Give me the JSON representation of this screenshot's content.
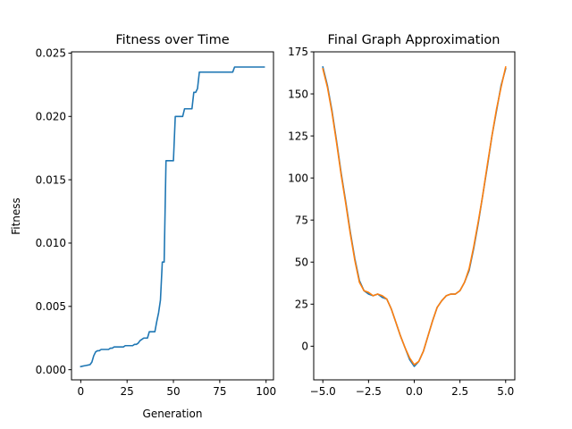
{
  "chart_data": [
    {
      "type": "line",
      "title": "Fitness over Time",
      "xlabel": "Generation",
      "ylabel": "Fitness",
      "xlim": [
        -5,
        104
      ],
      "ylim": [
        -0.0008,
        0.0251
      ],
      "xticks": [
        0,
        25,
        50,
        75,
        100
      ],
      "xtick_labels": [
        "0",
        "25",
        "50",
        "75",
        "100"
      ],
      "yticks": [
        0.0,
        0.005,
        0.01,
        0.015,
        0.02,
        0.025
      ],
      "ytick_labels": [
        "0.000",
        "0.005",
        "0.010",
        "0.015",
        "0.020",
        "0.025"
      ],
      "grid": false,
      "series": [
        {
          "color": "#1f77b4",
          "x": [
            0,
            1,
            2,
            3,
            4,
            5,
            6,
            7,
            8,
            9,
            10,
            11,
            12,
            13,
            14,
            15,
            16,
            17,
            18,
            19,
            20,
            21,
            22,
            23,
            24,
            25,
            26,
            27,
            28,
            29,
            30,
            31,
            32,
            33,
            34,
            35,
            36,
            37,
            38,
            39,
            40,
            41,
            42,
            43,
            44,
            45,
            46,
            47,
            48,
            49,
            50,
            51,
            52,
            53,
            54,
            55,
            56,
            57,
            58,
            59,
            60,
            61,
            62,
            63,
            64,
            65,
            66,
            67,
            68,
            69,
            70,
            71,
            72,
            73,
            74,
            75,
            76,
            77,
            78,
            79,
            80,
            81,
            82,
            83,
            84,
            85,
            86,
            87,
            88,
            89,
            90,
            91,
            92,
            93,
            94,
            95,
            96,
            97,
            98,
            99
          ],
          "y": [
            0.00025,
            0.00028,
            0.00031,
            0.00034,
            0.00037,
            0.0004,
            0.0006,
            0.0011,
            0.0014,
            0.0015,
            0.0015,
            0.0016,
            0.0016,
            0.0016,
            0.0016,
            0.0016,
            0.0017,
            0.0017,
            0.0018,
            0.0018,
            0.0018,
            0.0018,
            0.0018,
            0.0018,
            0.0019,
            0.0019,
            0.0019,
            0.0019,
            0.0019,
            0.002,
            0.002,
            0.0021,
            0.0023,
            0.0024,
            0.0025,
            0.0025,
            0.0025,
            0.003,
            0.003,
            0.003,
            0.003,
            0.0038,
            0.0045,
            0.0055,
            0.0085,
            0.0085,
            0.0165,
            0.0165,
            0.0165,
            0.0165,
            0.0165,
            0.02,
            0.02,
            0.02,
            0.02,
            0.02,
            0.0206,
            0.0206,
            0.0206,
            0.0206,
            0.0206,
            0.0219,
            0.0219,
            0.0222,
            0.0235,
            0.0235,
            0.0235,
            0.0235,
            0.0235,
            0.0235,
            0.0235,
            0.0235,
            0.0235,
            0.0235,
            0.0235,
            0.0235,
            0.0235,
            0.0235,
            0.0235,
            0.0235,
            0.0235,
            0.0235,
            0.0235,
            0.0239,
            0.0239,
            0.0239,
            0.0239,
            0.0239,
            0.0239,
            0.0239,
            0.0239,
            0.0239,
            0.0239,
            0.0239,
            0.0239,
            0.0239,
            0.0239,
            0.0239,
            0.0239,
            0.0239
          ]
        }
      ]
    },
    {
      "type": "line",
      "title": "Final Graph Approximation",
      "xlabel": "",
      "ylabel": "",
      "xlim": [
        -5.5,
        5.5
      ],
      "ylim": [
        -20,
        175
      ],
      "xticks": [
        -5,
        -2.5,
        0,
        2.5,
        5
      ],
      "xtick_labels": [
        "−5.0",
        "−2.5",
        "0.0",
        "2.5",
        "5.0"
      ],
      "yticks": [
        0,
        25,
        50,
        75,
        100,
        125,
        150,
        175
      ],
      "ytick_labels": [
        "0",
        "25",
        "50",
        "75",
        "100",
        "125",
        "150",
        "175"
      ],
      "grid": false,
      "series": [
        {
          "color": "#1f77b4",
          "x": [
            -5.0,
            -4.75,
            -4.5,
            -4.25,
            -4.0,
            -3.75,
            -3.5,
            -3.25,
            -3.0,
            -2.75,
            -2.5,
            -2.25,
            -2.0,
            -1.75,
            -1.5,
            -1.25,
            -1.0,
            -0.75,
            -0.5,
            -0.25,
            0.0,
            0.25,
            0.5,
            0.75,
            1.0,
            1.25,
            1.5,
            1.75,
            2.0,
            2.25,
            2.5,
            2.75,
            3.0,
            3.25,
            3.5,
            3.75,
            4.0,
            4.25,
            4.5,
            4.75,
            5.0
          ],
          "y": [
            166,
            155,
            140,
            122,
            103,
            86,
            68,
            52,
            39,
            33,
            31,
            30,
            31,
            29,
            28,
            22,
            14,
            6,
            -1,
            -8,
            -12,
            -9,
            -3,
            6,
            15,
            23,
            27,
            30,
            31,
            31,
            33,
            38,
            45,
            58,
            73,
            90,
            107,
            125,
            140,
            155,
            165
          ]
        },
        {
          "color": "#ff7f0e",
          "x": [
            -5.0,
            -4.75,
            -4.5,
            -4.25,
            -4.0,
            -3.75,
            -3.5,
            -3.25,
            -3.0,
            -2.75,
            -2.5,
            -2.25,
            -2.0,
            -1.75,
            -1.5,
            -1.25,
            -1.0,
            -0.75,
            -0.5,
            -0.25,
            0.0,
            0.25,
            0.5,
            0.75,
            1.0,
            1.25,
            1.5,
            1.75,
            2.0,
            2.25,
            2.5,
            2.75,
            3.0,
            3.25,
            3.5,
            3.75,
            4.0,
            4.25,
            4.5,
            4.75,
            5.0
          ],
          "y": [
            165,
            154,
            139,
            121,
            102,
            85,
            67,
            51,
            38,
            33,
            32,
            30,
            31,
            30,
            28,
            22,
            14,
            6,
            -1,
            -7,
            -11,
            -9,
            -3,
            6,
            15,
            23,
            27,
            30,
            31,
            31,
            33,
            38,
            46,
            59,
            74,
            90,
            108,
            125,
            141,
            154,
            166
          ]
        }
      ]
    }
  ]
}
